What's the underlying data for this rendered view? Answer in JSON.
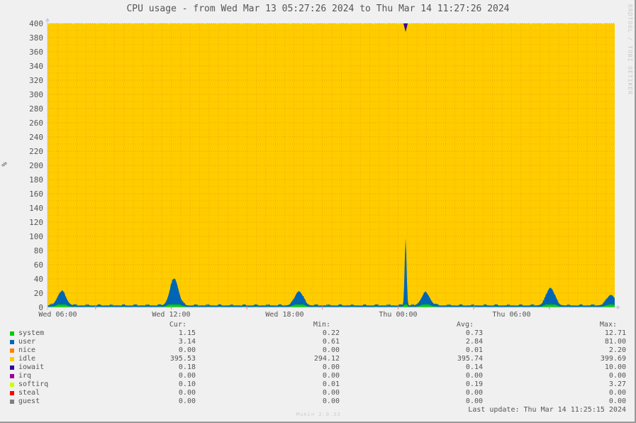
{
  "chart_data": {
    "type": "area",
    "title": "CPU usage - from Wed Mar 13 05:27:26 2024 to Thu Mar 14 11:27:26 2024",
    "ylabel": "%",
    "ylim": [
      0,
      400
    ],
    "yticks": [
      0,
      20,
      40,
      60,
      80,
      100,
      120,
      140,
      160,
      180,
      200,
      220,
      240,
      260,
      280,
      300,
      320,
      340,
      360,
      380,
      400
    ],
    "xrange": [
      "Wed 05:27:26",
      "Thu 11:27:26"
    ],
    "xticks": [
      "Wed 06:00",
      "Wed 12:00",
      "Wed 18:00",
      "Thu 00:00",
      "Thu 06:00"
    ],
    "grid": true,
    "stacked": true,
    "legend_placement": "bottom",
    "columns": [
      "Cur:",
      "Min:",
      "Avg:",
      "Max:"
    ],
    "series": [
      {
        "name": "system",
        "color": "#00cc00",
        "cur": "1.15",
        "min": "0.22",
        "avg": "0.73",
        "max": "12.71"
      },
      {
        "name": "user",
        "color": "#0066b3",
        "cur": "3.14",
        "min": "0.61",
        "avg": "2.84",
        "max": "81.00"
      },
      {
        "name": "nice",
        "color": "#ff8000",
        "cur": "0.00",
        "min": "0.00",
        "avg": "0.01",
        "max": "2.20"
      },
      {
        "name": "idle",
        "color": "#ffcc00",
        "cur": "395.53",
        "min": "294.12",
        "avg": "395.74",
        "max": "399.69"
      },
      {
        "name": "iowait",
        "color": "#330099",
        "cur": "0.18",
        "min": "0.00",
        "avg": "0.14",
        "max": "10.00"
      },
      {
        "name": "irq",
        "color": "#990099",
        "cur": "0.00",
        "min": "0.00",
        "avg": "0.00",
        "max": "0.00"
      },
      {
        "name": "softirq",
        "color": "#ccff00",
        "cur": "0.10",
        "min": "0.01",
        "avg": "0.19",
        "max": "3.27"
      },
      {
        "name": "steal",
        "color": "#ff0000",
        "cur": "0.00",
        "min": "0.00",
        "avg": "0.00",
        "max": "0.00"
      },
      {
        "name": "guest",
        "color": "#808080",
        "cur": "0.00",
        "min": "0.00",
        "avg": "0.00",
        "max": "0.00"
      }
    ],
    "busy_peaks_hours_from_start": [
      {
        "t": 0.75,
        "value": 20
      },
      {
        "t": 6.7,
        "value": 38
      },
      {
        "t": 13.3,
        "value": 20
      },
      {
        "t": 18.94,
        "value": 95
      },
      {
        "t": 20.0,
        "value": 18
      },
      {
        "t": 26.6,
        "value": 25
      },
      {
        "t": 29.8,
        "value": 15
      }
    ]
  },
  "watermark": "RRDTOOL / TOBI OETIKER",
  "footer": "Munin 2.0.33",
  "last_update": "Last update: Thu Mar 14 11:25:15 2024"
}
